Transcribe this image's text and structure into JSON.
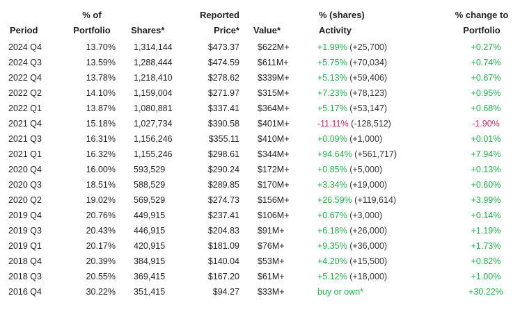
{
  "colors": {
    "positive": "#22b14c",
    "negative": "#e0245e",
    "text": "#222222"
  },
  "headers": {
    "period": [
      "",
      "Period"
    ],
    "pct_portfolio": [
      "% of",
      "Portfolio"
    ],
    "shares": [
      "",
      "Shares*"
    ],
    "price": [
      "Reported",
      "Price*"
    ],
    "value": [
      "",
      "Value*"
    ],
    "activity": [
      "% (shares)",
      "Activity"
    ],
    "change": [
      "% change to",
      "Portfolio"
    ]
  },
  "rows": [
    {
      "period": "2024 Q4",
      "pct": "13.70%",
      "shares": "1,314,144",
      "price": "$473.37",
      "value": "$622M+",
      "activity_main": "+1.99%",
      "activity_sub": " (+25,700)",
      "activity_sign": "pos",
      "change": "+0.27%",
      "change_sign": "pos"
    },
    {
      "period": "2024 Q3",
      "pct": "13.59%",
      "shares": "1,288,444",
      "price": "$474.59",
      "value": "$611M+",
      "activity_main": "+5.75%",
      "activity_sub": " (+70,034)",
      "activity_sign": "pos",
      "change": "+0.74%",
      "change_sign": "pos"
    },
    {
      "period": "2022 Q4",
      "pct": "13.78%",
      "shares": "1,218,410",
      "price": "$278.62",
      "value": "$339M+",
      "activity_main": "+5.13%",
      "activity_sub": " (+59,406)",
      "activity_sign": "pos",
      "change": "+0.67%",
      "change_sign": "pos"
    },
    {
      "period": "2022 Q2",
      "pct": "14.10%",
      "shares": "1,159,004",
      "price": "$271.97",
      "value": "$315M+",
      "activity_main": "+7.23%",
      "activity_sub": " (+78,123)",
      "activity_sign": "pos",
      "change": "+0.95%",
      "change_sign": "pos"
    },
    {
      "period": "2022 Q1",
      "pct": "13.87%",
      "shares": "1,080,881",
      "price": "$337.41",
      "value": "$364M+",
      "activity_main": "+5.17%",
      "activity_sub": " (+53,147)",
      "activity_sign": "pos",
      "change": "+0.68%",
      "change_sign": "pos"
    },
    {
      "period": "2021 Q4",
      "pct": "15.18%",
      "shares": "1,027,734",
      "price": "$390.58",
      "value": "$401M+",
      "activity_main": "-11.11%",
      "activity_sub": " (-128,512)",
      "activity_sign": "neg",
      "change": "-1.90%",
      "change_sign": "neg"
    },
    {
      "period": "2021 Q3",
      "pct": "16.31%",
      "shares": "1,156,246",
      "price": "$355.11",
      "value": "$410M+",
      "activity_main": "+0.09%",
      "activity_sub": " (+1,000)",
      "activity_sign": "pos",
      "change": "+0.01%",
      "change_sign": "pos"
    },
    {
      "period": "2021 Q1",
      "pct": "16.32%",
      "shares": "1,155,246",
      "price": "$298.61",
      "value": "$344M+",
      "activity_main": "+94.64%",
      "activity_sub": " (+561,717)",
      "activity_sign": "pos",
      "change": "+7.94%",
      "change_sign": "pos"
    },
    {
      "period": "2020 Q4",
      "pct": "16.00%",
      "shares": "593,529",
      "price": "$290.24",
      "value": "$172M+",
      "activity_main": "+0.85%",
      "activity_sub": " (+5,000)",
      "activity_sign": "pos",
      "change": "+0.13%",
      "change_sign": "pos"
    },
    {
      "period": "2020 Q3",
      "pct": "18.51%",
      "shares": "588,529",
      "price": "$289.85",
      "value": "$170M+",
      "activity_main": "+3.34%",
      "activity_sub": " (+19,000)",
      "activity_sign": "pos",
      "change": "+0.60%",
      "change_sign": "pos"
    },
    {
      "period": "2020 Q2",
      "pct": "19.02%",
      "shares": "569,529",
      "price": "$274.73",
      "value": "$156M+",
      "activity_main": "+26.59%",
      "activity_sub": " (+119,614)",
      "activity_sign": "pos",
      "change": "+3.99%",
      "change_sign": "pos"
    },
    {
      "period": "2019 Q4",
      "pct": "20.76%",
      "shares": "449,915",
      "price": "$237.41",
      "value": "$106M+",
      "activity_main": "+0.67%",
      "activity_sub": " (+3,000)",
      "activity_sign": "pos",
      "change": "+0.14%",
      "change_sign": "pos"
    },
    {
      "period": "2019 Q3",
      "pct": "20.43%",
      "shares": "446,915",
      "price": "$204.83",
      "value": "$91M+",
      "activity_main": "+6.18%",
      "activity_sub": " (+26,000)",
      "activity_sign": "pos",
      "change": "+1.19%",
      "change_sign": "pos"
    },
    {
      "period": "2019 Q1",
      "pct": "20.17%",
      "shares": "420,915",
      "price": "$181.09",
      "value": "$76M+",
      "activity_main": "+9.35%",
      "activity_sub": " (+36,000)",
      "activity_sign": "pos",
      "change": "+1.73%",
      "change_sign": "pos"
    },
    {
      "period": "2018 Q4",
      "pct": "20.39%",
      "shares": "384,915",
      "price": "$140.04",
      "value": "$53M+",
      "activity_main": "+4.20%",
      "activity_sub": " (+15,500)",
      "activity_sign": "pos",
      "change": "+0.82%",
      "change_sign": "pos"
    },
    {
      "period": "2018 Q3",
      "pct": "20.55%",
      "shares": "369,415",
      "price": "$167.20",
      "value": "$61M+",
      "activity_main": "+5.12%",
      "activity_sub": " (+18,000)",
      "activity_sign": "pos",
      "change": "+1.00%",
      "change_sign": "pos"
    },
    {
      "period": "2016 Q4",
      "pct": "30.22%",
      "shares": "351,415",
      "price": "$94.27",
      "value": "$33M+",
      "activity_main": "buy or own*",
      "activity_sub": "",
      "activity_sign": "pos",
      "change": "+30.22%",
      "change_sign": "pos"
    }
  ]
}
